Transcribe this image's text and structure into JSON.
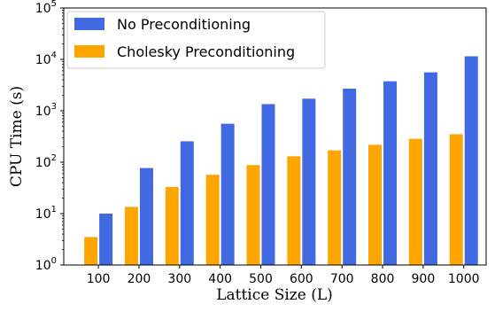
{
  "chart_data": {
    "type": "bar",
    "yscale": "log",
    "xlabel": "Lattice Size (L)",
    "ylabel": "CPU Time (s)",
    "categories": [
      "100",
      "200",
      "300",
      "400",
      "500",
      "600",
      "700",
      "800",
      "900",
      "1000"
    ],
    "ylim": [
      1,
      100000
    ],
    "yticks": [
      {
        "base": "10",
        "exp": "0"
      },
      {
        "base": "10",
        "exp": "1"
      },
      {
        "base": "10",
        "exp": "2"
      },
      {
        "base": "10",
        "exp": "3"
      },
      {
        "base": "10",
        "exp": "4"
      },
      {
        "base": "10",
        "exp": "5"
      }
    ],
    "series": [
      {
        "name": "No Preconditioning",
        "color": "#4169e1",
        "values": [
          10,
          77,
          255,
          560,
          1350,
          1720,
          2700,
          3750,
          5600,
          11500
        ]
      },
      {
        "name": "Cholesky Preconditioning",
        "color": "#ffa500",
        "values": [
          3.5,
          13.5,
          33,
          57,
          88,
          130,
          170,
          218,
          285,
          350
        ]
      }
    ],
    "legend_position": "top-left",
    "grid": false
  }
}
